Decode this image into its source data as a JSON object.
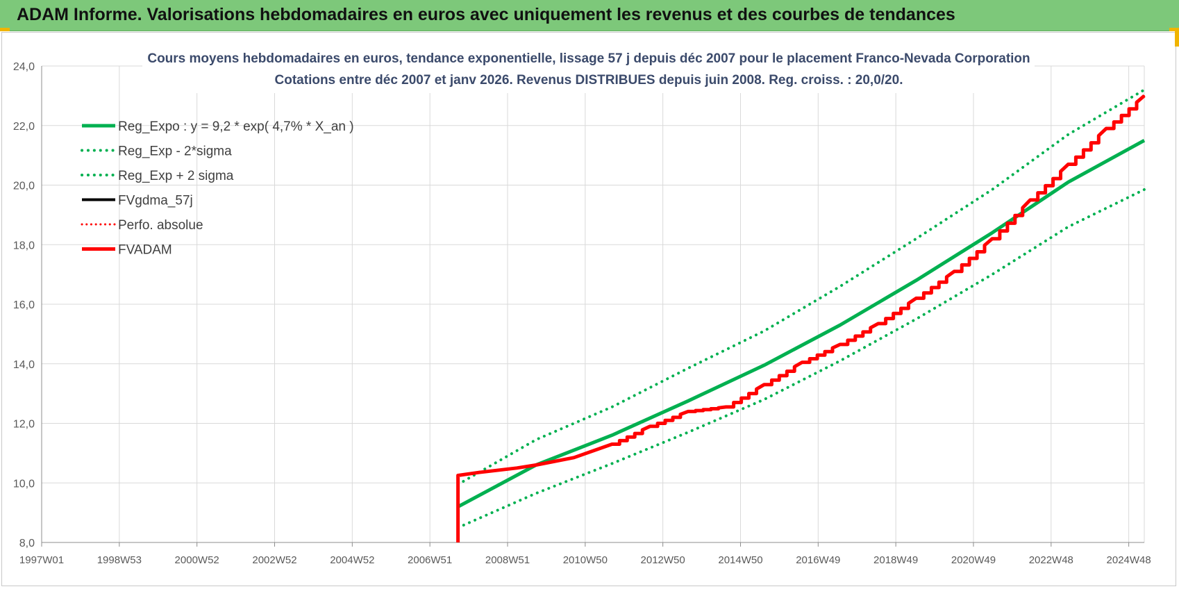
{
  "banner": {
    "title": "ADAM Informe. Valorisations hebdomadaires en euros avec uniquement les revenus et des courbes de tendances"
  },
  "colors": {
    "banner_bg": "#7dc87a",
    "reg_green": "#00b050",
    "red": "#ff0000",
    "black": "#000000",
    "grid": "#d9d9d9",
    "axis_text": "#595959",
    "title_text": "#3b4a6b"
  },
  "chart_data": {
    "type": "line",
    "title_line1": "Cours moyens hebdomadaires en euros, tendance exponentielle, lissage 57 j depuis déc 2007 pour le placement Franco-Nevada Corporation",
    "title_line2": "Cotations entre déc 2007 et janv 2026. Revenus DISTRIBUES depuis juin 2008. Reg. croiss. : 20,0/20.",
    "x_tick_labels": [
      "1997W01",
      "1998W53",
      "2000W52",
      "2002W52",
      "2004W52",
      "2006W51",
      "2008W51",
      "2010W50",
      "2012W50",
      "2014W50",
      "2016W49",
      "2018W49",
      "2020W49",
      "2022W48",
      "2024W48"
    ],
    "x_range_years": [
      1997.0,
      2026.0
    ],
    "ylim": [
      8.0,
      24.0
    ],
    "y_ticks": [
      "8,0",
      "10,0",
      "12,0",
      "14,0",
      "16,0",
      "18,0",
      "20,0",
      "22,0",
      "24,0"
    ],
    "grid": true,
    "legend_position": "top-left",
    "legend": [
      {
        "label": "Reg_Expo : y = 9,2 * exp( 4,7% *  X_an )",
        "color": "#00b050",
        "style": "solid",
        "width": 5
      },
      {
        "label": "Reg_Exp - 2*sigma",
        "color": "#00b050",
        "style": "dotted",
        "width": 4
      },
      {
        "label": "Reg_Exp + 2 sigma",
        "color": "#00b050",
        "style": "dotted",
        "width": 4
      },
      {
        "label": "FVgdma_57j",
        "color": "#000000",
        "style": "solid",
        "width": 4
      },
      {
        "label": "Perfo. absolue",
        "color": "#ff0000",
        "style": "dotted",
        "width": 3
      },
      {
        "label": "FVADAM",
        "color": "#ff0000",
        "style": "solid",
        "width": 5
      }
    ],
    "series": [
      {
        "name": "Reg_Expo : y = 9,2 * exp( 4,7% *  X_an )",
        "x": [
          2007.95,
          2010,
          2012,
          2014,
          2016,
          2018,
          2020,
          2022,
          2024,
          2026
        ],
        "y": [
          9.2,
          10.6,
          11.6,
          12.75,
          13.95,
          15.3,
          16.8,
          18.4,
          20.1,
          21.5
        ]
      },
      {
        "name": "Reg_Exp - 2*sigma",
        "x": [
          2007.95,
          2010,
          2012,
          2014,
          2016,
          2018,
          2020,
          2022,
          2024,
          2026
        ],
        "y": [
          8.5,
          9.65,
          10.65,
          11.7,
          12.8,
          14.1,
          15.5,
          17.0,
          18.6,
          19.85
        ]
      },
      {
        "name": "Reg_Exp + 2 sigma",
        "x": [
          2007.95,
          2010,
          2012,
          2014,
          2016,
          2018,
          2020,
          2022,
          2024,
          2026
        ],
        "y": [
          9.95,
          11.45,
          12.55,
          13.85,
          15.1,
          16.6,
          18.2,
          19.85,
          21.7,
          23.2
        ]
      },
      {
        "name": "FVgdma_57j",
        "x": [
          2007.95,
          2008.5,
          2009.5,
          2010,
          2011,
          2012,
          2013,
          2014,
          2015,
          2016,
          2017,
          2018,
          2019,
          2020,
          2021,
          2022,
          2023,
          2024,
          2025,
          2026
        ],
        "y": [
          10.25,
          10.35,
          10.5,
          10.6,
          10.85,
          11.3,
          11.9,
          12.4,
          12.55,
          13.3,
          14.05,
          14.65,
          15.35,
          16.2,
          17.1,
          18.2,
          19.5,
          20.7,
          21.9,
          23.0
        ]
      },
      {
        "name": "Perfo. absolue",
        "x": [
          2007.95,
          2008.5,
          2009.5,
          2010,
          2011,
          2012,
          2013,
          2014,
          2015,
          2016,
          2017,
          2018,
          2019,
          2020,
          2021,
          2022,
          2023,
          2024,
          2025,
          2026
        ],
        "y": [
          10.25,
          10.35,
          10.5,
          10.6,
          10.85,
          11.3,
          11.9,
          12.4,
          12.55,
          13.3,
          14.05,
          14.65,
          15.35,
          16.2,
          17.1,
          18.2,
          19.5,
          20.7,
          21.9,
          23.0
        ]
      },
      {
        "name": "FVADAM",
        "x": [
          2007.95,
          2007.95,
          2008.5,
          2009.5,
          2010,
          2011,
          2012,
          2013,
          2014,
          2015,
          2016,
          2017,
          2018,
          2019,
          2020,
          2021,
          2022,
          2023,
          2024,
          2025,
          2026
        ],
        "y": [
          8.0,
          10.25,
          10.35,
          10.5,
          10.6,
          10.85,
          11.3,
          11.9,
          12.4,
          12.55,
          13.3,
          14.05,
          14.65,
          15.35,
          16.2,
          17.1,
          18.2,
          19.5,
          20.7,
          21.9,
          23.0
        ]
      }
    ]
  }
}
